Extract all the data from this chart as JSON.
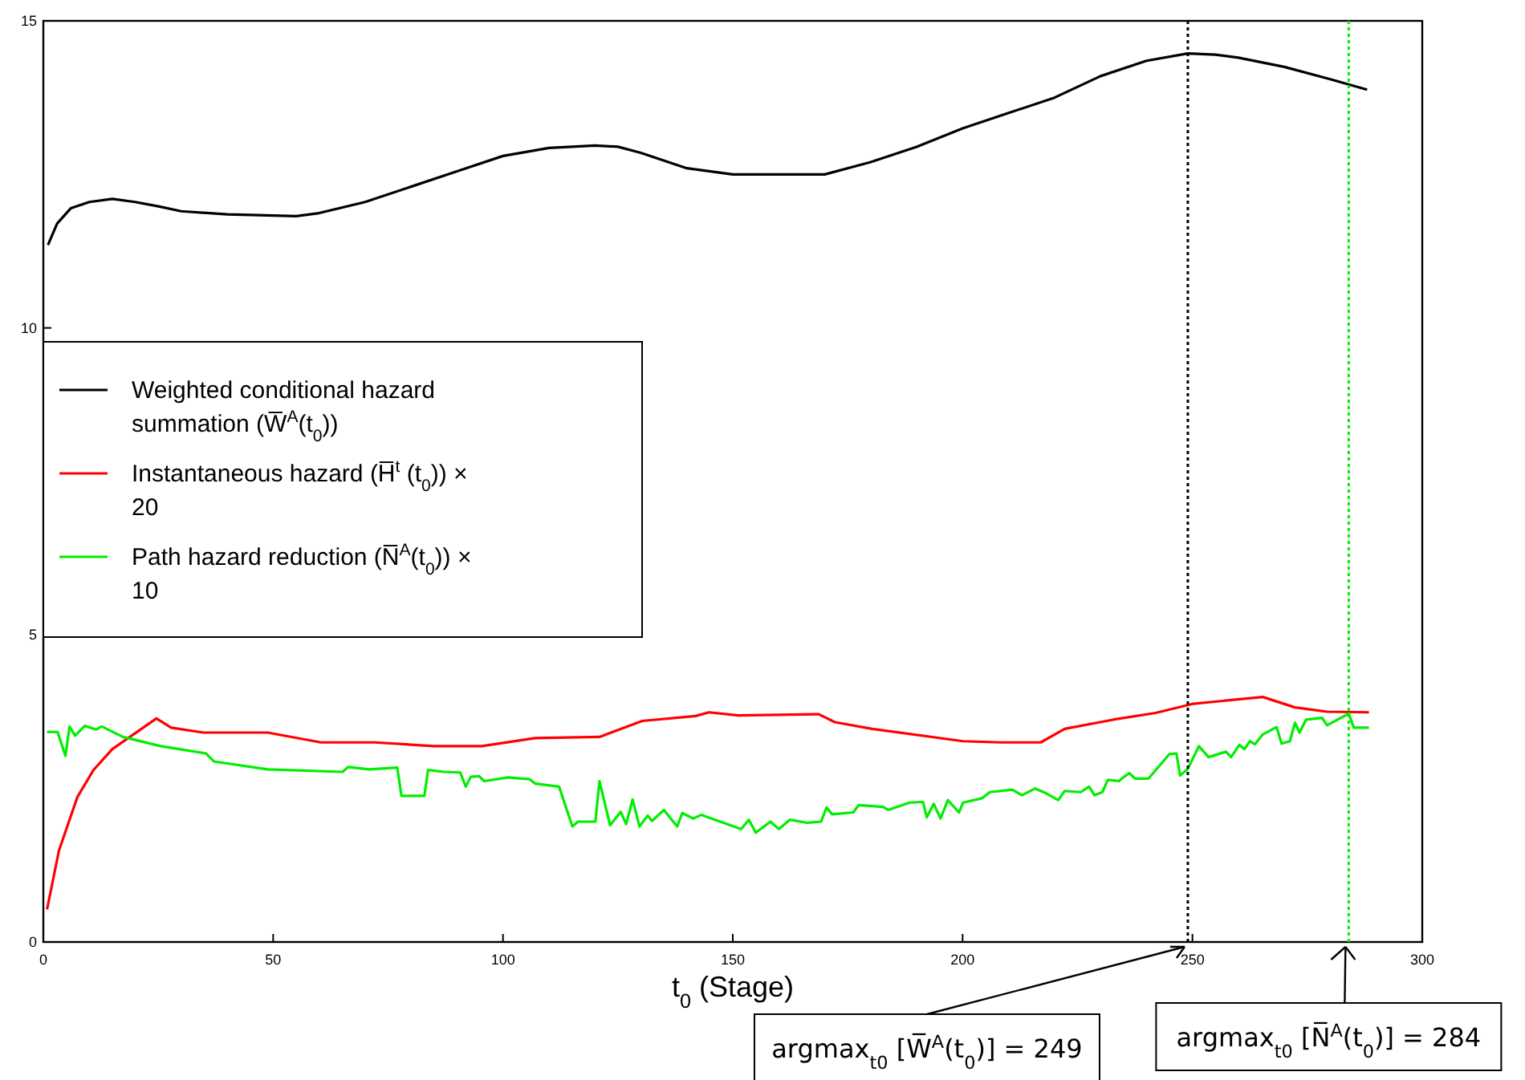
{
  "chart_data": {
    "type": "line",
    "xlabel": "t$_{0}$ (Stage)",
    "xlim": [
      0,
      300
    ],
    "xticks": [
      0,
      50,
      100,
      150,
      200,
      250,
      300
    ],
    "ylim": [
      0,
      15
    ],
    "yticks": [
      0,
      5,
      10,
      15
    ],
    "grid": false,
    "legend": "left",
    "marker": "none",
    "line_style": "solid",
    "series": [
      {
        "name": "Weighted conditional hazard summation (W̅$^{A}$(t$_{0}$))",
        "color": "#000000",
        "x": [
          1,
          3,
          6,
          10,
          15,
          20,
          25,
          30,
          40,
          50,
          55,
          60,
          70,
          80,
          90,
          100,
          110,
          120,
          125,
          130,
          140,
          150,
          155,
          170,
          180,
          190,
          200,
          210,
          220,
          230,
          240,
          249,
          255,
          260,
          270,
          280,
          288
        ],
        "values": [
          11.35,
          11.7,
          11.95,
          12.05,
          12.1,
          12.05,
          11.98,
          11.9,
          11.85,
          11.83,
          11.82,
          11.87,
          12.05,
          12.3,
          12.55,
          12.8,
          12.93,
          12.97,
          12.95,
          12.85,
          12.6,
          12.5,
          12.5,
          12.5,
          12.7,
          12.95,
          13.25,
          13.5,
          13.75,
          14.1,
          14.35,
          14.47,
          14.45,
          14.4,
          14.25,
          14.05,
          13.88
        ]
      },
      {
        "name": "Instantaneous hazard (H̅$^{t}$ (t$_{0}$)) × 20",
        "color": "#ff0000",
        "x": [
          0.8,
          3.4,
          7.4,
          10.9,
          15,
          24.6,
          27.8,
          34.8,
          48.8,
          60.4,
          72.1,
          84.9,
          95.4,
          107,
          121,
          130.3,
          141.9,
          144.8,
          151.2,
          168.7,
          172.2,
          180.3,
          200.1,
          208.3,
          217,
          222.2,
          232.7,
          242,
          250.2,
          265.3,
          272.3,
          279.3,
          288.4
        ],
        "values": [
          0.53,
          1.49,
          2.36,
          2.8,
          3.14,
          3.64,
          3.49,
          3.41,
          3.41,
          3.25,
          3.25,
          3.19,
          3.19,
          3.32,
          3.34,
          3.6,
          3.68,
          3.74,
          3.69,
          3.71,
          3.58,
          3.47,
          3.27,
          3.25,
          3.25,
          3.47,
          3.62,
          3.73,
          3.88,
          3.99,
          3.82,
          3.75,
          3.74
        ]
      },
      {
        "name": "Path hazard reduction (N̅$^{A}$(t$_{0}$)) × 10",
        "color": "#00ee00",
        "x": [
          0.8,
          3.1,
          4.8,
          5.7,
          6.9,
          9,
          11.5,
          12.7,
          17.3,
          25.5,
          35.4,
          37.1,
          48.8,
          65.1,
          66.3,
          70.9,
          77,
          77.9,
          82.9,
          83.7,
          87.2,
          90.7,
          91.9,
          93,
          94.8,
          95.9,
          101.1,
          105.8,
          107,
          112.2,
          115.1,
          116.3,
          120.1,
          121,
          123.3,
          125.6,
          126.8,
          128.2,
          129.7,
          131.5,
          132.4,
          135,
          137.9,
          139,
          141.4,
          143.1,
          151.8,
          153.5,
          155,
          158.2,
          160,
          162.4,
          166.2,
          169.2,
          170.4,
          171.6,
          176.2,
          177.4,
          182.7,
          183.8,
          188.5,
          191.4,
          192.2,
          193.7,
          195.2,
          196.8,
          199.2,
          200.1,
          204.2,
          205.9,
          210.8,
          212.9,
          215.8,
          218.2,
          220.8,
          222.2,
          225.7,
          227.5,
          228.7,
          230.4,
          231.6,
          234,
          235.1,
          236.3,
          237.5,
          240.4,
          245,
          246.5,
          247.3,
          249,
          251.4,
          253.5,
          257.3,
          258.4,
          260.2,
          261.3,
          262.5,
          263.6,
          265.3,
          268.3,
          269.4,
          271.2,
          272.3,
          273.3,
          274.7,
          278.2,
          279.3,
          284,
          285.1,
          288.4
        ],
        "values": [
          3.42,
          3.42,
          3.03,
          3.51,
          3.36,
          3.52,
          3.46,
          3.51,
          3.34,
          3.19,
          3.07,
          2.94,
          2.81,
          2.77,
          2.85,
          2.81,
          2.84,
          2.38,
          2.38,
          2.8,
          2.77,
          2.76,
          2.53,
          2.69,
          2.7,
          2.62,
          2.68,
          2.65,
          2.58,
          2.53,
          1.88,
          1.96,
          1.96,
          2.62,
          1.9,
          2.12,
          1.92,
          2.32,
          1.88,
          2.06,
          1.97,
          2.15,
          1.88,
          2.1,
          2.01,
          2.07,
          1.84,
          1.99,
          1.78,
          1.96,
          1.84,
          1.99,
          1.94,
          1.96,
          2.19,
          2.08,
          2.11,
          2.23,
          2.2,
          2.15,
          2.27,
          2.28,
          2.03,
          2.25,
          2.01,
          2.31,
          2.11,
          2.27,
          2.34,
          2.44,
          2.48,
          2.39,
          2.5,
          2.42,
          2.31,
          2.46,
          2.44,
          2.53,
          2.39,
          2.44,
          2.64,
          2.62,
          2.69,
          2.75,
          2.66,
          2.66,
          3.06,
          3.07,
          2.71,
          2.82,
          3.19,
          3.01,
          3.1,
          3.01,
          3.21,
          3.14,
          3.27,
          3.22,
          3.38,
          3.5,
          3.23,
          3.27,
          3.57,
          3.41,
          3.62,
          3.65,
          3.53,
          3.72,
          3.49,
          3.49
        ]
      }
    ],
    "ref_lines": [
      {
        "axis": "x",
        "value": 249,
        "label": "argmax$_{t0}$ [W̅$^{A}$(t$_{0}$)] = 249",
        "color": "#000000",
        "line_style": "dotted"
      },
      {
        "axis": "x",
        "value": 284,
        "label": "argmax$_{t0}$ [N̅$^{A}$(t$_{0}$)] = 284",
        "color": "#00ee00",
        "line_style": "dotted"
      }
    ]
  }
}
